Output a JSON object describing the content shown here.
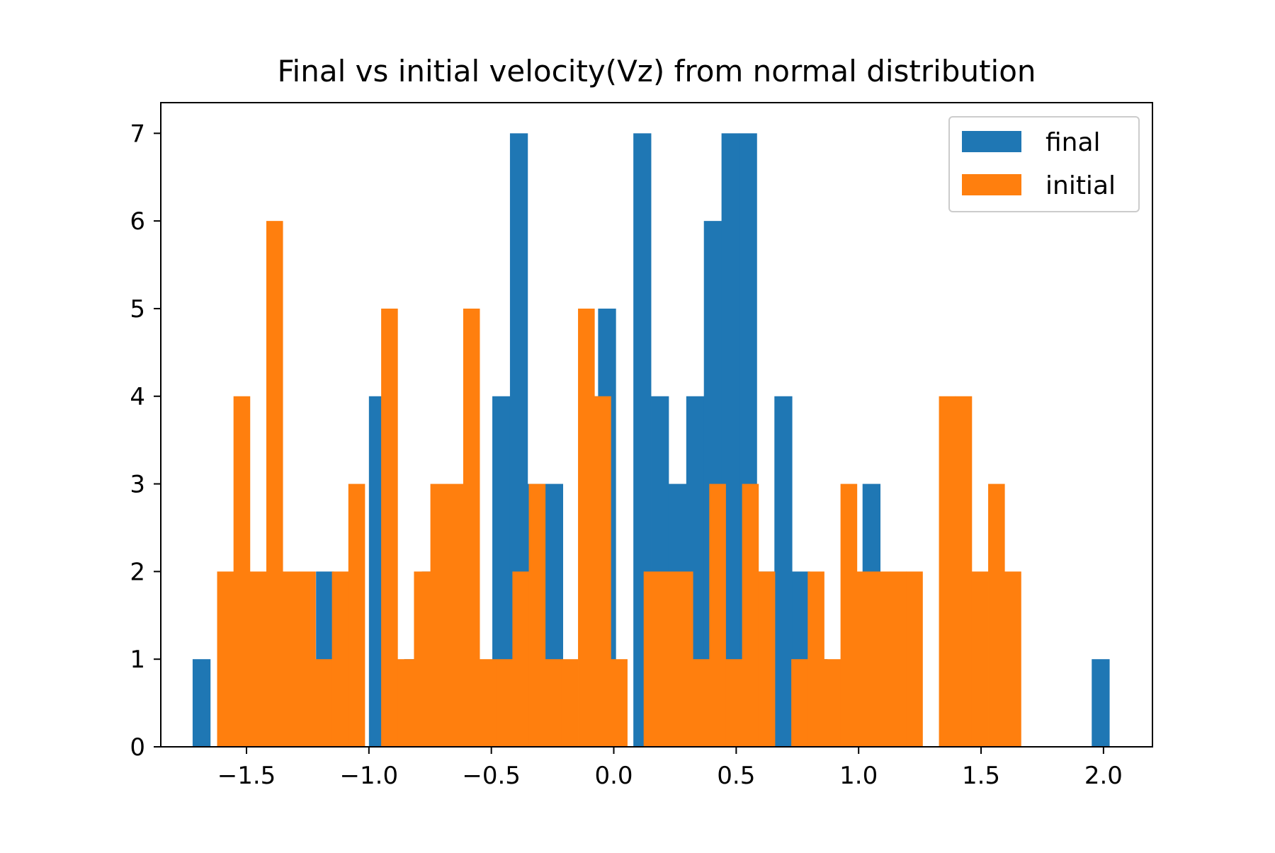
{
  "chart_data": {
    "type": "histogram",
    "title": "Final vs initial velocity(Vz) from normal distribution",
    "xlabel": "",
    "ylabel": "",
    "xlim": [
      -1.85,
      2.2
    ],
    "ylim": [
      0,
      7.35
    ],
    "x_ticks": [
      -1.5,
      -1.0,
      -0.5,
      0.0,
      0.5,
      1.0,
      1.5,
      2.0
    ],
    "x_tick_labels": [
      "−1.5",
      "−1.0",
      "−0.5",
      "0.0",
      "0.5",
      "1.0",
      "1.5",
      "2.0"
    ],
    "y_ticks": [
      0,
      1,
      2,
      3,
      4,
      5,
      6,
      7
    ],
    "y_tick_labels": [
      "0",
      "1",
      "2",
      "3",
      "4",
      "5",
      "6",
      "7"
    ],
    "grid": false,
    "legend_position": "top-right",
    "series": [
      {
        "name": "final",
        "color": "#1f77b4",
        "bin_edges": [
          -1.72,
          -1.648,
          -1.576,
          -1.504,
          -1.432,
          -1.36,
          -1.288,
          -1.216,
          -1.144,
          -1.072,
          -1.0,
          -0.928,
          -0.856,
          -0.784,
          -0.712,
          -0.64,
          -0.568,
          -0.496,
          -0.424,
          -0.352,
          -0.28,
          -0.208,
          -0.136,
          -0.064,
          0.008,
          0.08,
          0.152,
          0.224,
          0.296,
          0.368,
          0.44,
          0.512,
          0.584,
          0.656,
          0.728,
          0.8,
          0.872,
          0.944,
          1.016,
          1.088,
          1.16,
          1.232,
          1.304,
          1.376,
          1.448,
          1.52,
          1.592,
          1.664,
          1.736,
          1.808,
          1.88,
          1.952,
          2.024
        ],
        "counts": [
          1,
          0,
          0,
          0,
          0,
          0,
          0,
          2,
          0,
          0,
          4,
          0,
          1,
          2,
          0,
          0,
          0,
          4,
          7,
          3,
          3,
          0,
          4,
          5,
          0,
          7,
          4,
          3,
          4,
          6,
          7,
          7,
          2,
          4,
          2,
          1,
          0,
          0,
          3,
          0,
          0,
          0,
          0,
          1,
          0,
          0,
          0,
          0,
          0,
          0,
          0,
          1
        ]
      },
      {
        "name": "initial",
        "color": "#ff7f0e",
        "bin_edges": [
          -1.62,
          -1.553,
          -1.486,
          -1.419,
          -1.352,
          -1.285,
          -1.218,
          -1.151,
          -1.084,
          -1.017,
          -0.95,
          -0.883,
          -0.816,
          -0.749,
          -0.682,
          -0.615,
          -0.548,
          -0.481,
          -0.414,
          -0.347,
          -0.28,
          -0.213,
          -0.146,
          -0.079,
          -0.012,
          0.055,
          0.122,
          0.189,
          0.256,
          0.323,
          0.39,
          0.457,
          0.524,
          0.591,
          0.658,
          0.725,
          0.792,
          0.859,
          0.926,
          0.993,
          1.06,
          1.127,
          1.194,
          1.261,
          1.328,
          1.395,
          1.462,
          1.529,
          1.596,
          1.663,
          1.73
        ],
        "counts": [
          2,
          4,
          2,
          6,
          2,
          2,
          1,
          2,
          3,
          0,
          5,
          1,
          2,
          3,
          3,
          5,
          1,
          1,
          2,
          3,
          1,
          1,
          5,
          4,
          1,
          0,
          2,
          2,
          2,
          1,
          3,
          1,
          3,
          2,
          0,
          1,
          2,
          1,
          3,
          2,
          2,
          2,
          2,
          0,
          4,
          4,
          2,
          3,
          2,
          0
        ]
      }
    ]
  }
}
